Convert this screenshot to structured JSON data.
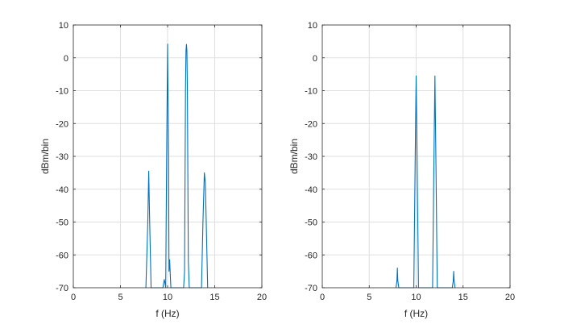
{
  "chart_data": [
    {
      "type": "line",
      "xlabel": "f (Hz)",
      "ylabel": "dBm/bin",
      "xlim": [
        0,
        20
      ],
      "ylim": [
        -70,
        10
      ],
      "xticks": [
        0,
        5,
        10,
        15,
        20
      ],
      "yticks": [
        10,
        0,
        -10,
        -20,
        -30,
        -40,
        -50,
        -60,
        -70
      ],
      "grid": true,
      "color": "#0072BD",
      "series": [
        {
          "x": [
            7.7,
            7.9,
            8.0,
            8.1,
            8.25,
            9.5,
            9.65,
            9.72,
            9.8,
            9.9,
            10.0,
            10.1,
            10.15,
            10.22,
            10.3,
            10.35,
            10.5,
            11.7,
            11.8,
            11.9,
            11.95,
            12.0,
            12.05,
            12.1,
            12.2,
            12.3,
            13.6,
            13.75,
            13.9,
            14.0,
            14.1,
            14.25
          ],
          "y": [
            -70,
            -50,
            -34.5,
            -50,
            -70,
            -70,
            -67.5,
            -68.5,
            -70,
            -30,
            4.2,
            -30,
            -65,
            -61.5,
            -67,
            -70,
            -70,
            -70,
            -65,
            -10,
            2,
            4.1,
            2,
            -10,
            -62,
            -70,
            -70,
            -50,
            -35,
            -38,
            -50,
            -70
          ]
        }
      ]
    },
    {
      "type": "line",
      "xlabel": "f (Hz)",
      "ylabel": "dBm/bin",
      "xlim": [
        0,
        20
      ],
      "ylim": [
        -70,
        10
      ],
      "xticks": [
        0,
        5,
        10,
        15,
        20
      ],
      "yticks": [
        10,
        0,
        -10,
        -20,
        -30,
        -40,
        -50,
        -60,
        -70
      ],
      "grid": true,
      "color": "#0072BD",
      "series": [
        {
          "x": [
            7.85,
            7.95,
            8.0,
            8.05,
            8.15,
            9.75,
            9.9,
            10.0,
            10.1,
            10.25,
            11.75,
            11.9,
            12.0,
            12.1,
            12.25,
            13.85,
            13.95,
            14.0,
            14.05,
            14.15
          ],
          "y": [
            -70,
            -68,
            -64,
            -68,
            -70,
            -70,
            -30,
            -5.5,
            -30,
            -70,
            -70,
            -30,
            -5.5,
            -30,
            -70,
            -70,
            -68,
            -65,
            -68,
            -70
          ]
        }
      ]
    }
  ]
}
